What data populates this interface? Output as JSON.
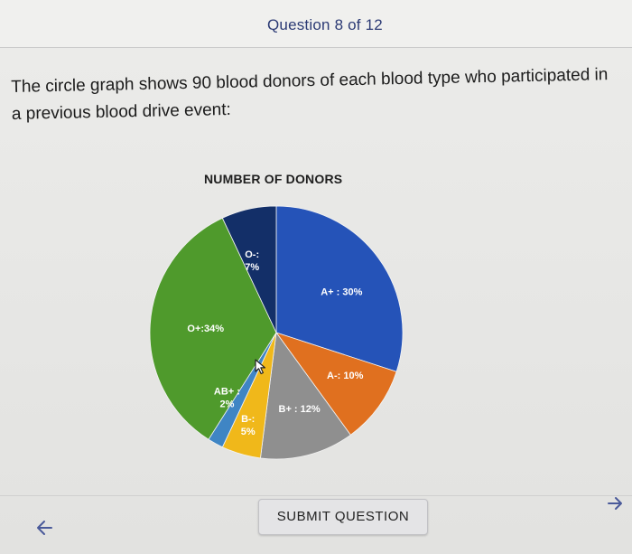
{
  "header": {
    "question_counter": "Question 8 of 12"
  },
  "question": {
    "prompt": "The circle graph shows 90 blood donors of each blood type who participated in a previous blood drive event:"
  },
  "chart_data": {
    "type": "pie",
    "title": "NUMBER OF DONORS",
    "slices": [
      {
        "name": "A+",
        "label": "A+ : 30%",
        "value": 30,
        "color": "#2553b8"
      },
      {
        "name": "A-",
        "label": "A-: 10%",
        "value": 10,
        "color": "#e0701f"
      },
      {
        "name": "B+",
        "label": "B+ : 12%",
        "value": 12,
        "color": "#8f8f8f"
      },
      {
        "name": "B-",
        "label_line1": "B-:",
        "label_line2": "5%",
        "value": 5,
        "color": "#f0b81a"
      },
      {
        "name": "AB+",
        "label_line1": "AB+ :",
        "label_line2": "2%",
        "value": 2,
        "color": "#3f85c4"
      },
      {
        "name": "O+",
        "label": "O+:34%",
        "value": 34,
        "color": "#4f9a2c"
      },
      {
        "name": "O-",
        "label_line1": "O-:",
        "label_line2": "7%",
        "value": 7,
        "color": "#132f68"
      }
    ]
  },
  "footer": {
    "back_icon": "arrow-left-icon",
    "submit_label": "SUBMIT QUESTION",
    "next_icon": "arrow-right-icon"
  },
  "colors": {
    "accent": "#2b3a74",
    "icon": "#4a5a9a"
  }
}
